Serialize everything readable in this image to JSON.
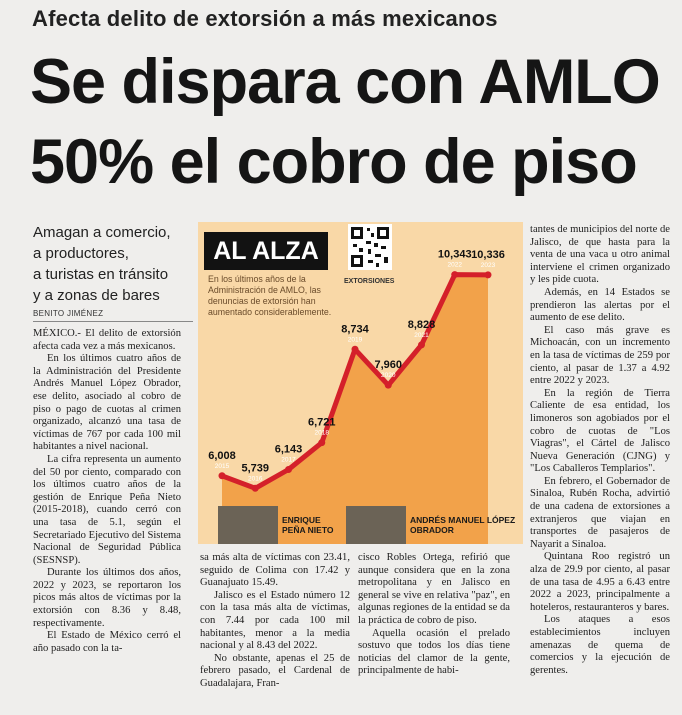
{
  "kicker": "Afecta delito de extorsión a más mexicanos",
  "headline": [
    "Se dispara con AMLO",
    "50% el cobro de piso"
  ],
  "subhead": [
    "Amagan a comercio,",
    "a productores,",
    "a turistas en tránsito",
    "y a zonas de bares"
  ],
  "byline": "BENITO JIMÉNEZ",
  "chart_data": {
    "type": "line",
    "title": "AL ALZA",
    "note": "En los últimos años de la Administración de AMLO, las denuncias de extorsión han aumentado considerablemente.",
    "qr_label": "EXTORSIONES",
    "x": [
      "2015",
      "2016",
      "2017",
      "2018",
      "2019",
      "2020",
      "2021",
      "2022",
      "2023"
    ],
    "values": [
      6008,
      5739,
      6143,
      6721,
      8734,
      7960,
      8828,
      10343,
      10336
    ],
    "value_labels": [
      "6,008",
      "5,739",
      "6,143",
      "6,721",
      "8,734",
      "7,960",
      "8,828",
      "10,343",
      "10,336"
    ],
    "ylim": [
      5400,
      10700
    ],
    "line_color": "#d4202a",
    "fill_color": "#f2a24a",
    "captions": [
      "ENRIQUE PEÑA NIETO",
      "ANDRÉS MANUEL LÓPEZ OBRADOR"
    ]
  },
  "col1": [
    "MÉXICO.- El delito de extorsión afecta cada vez a más mexicanos.",
    "En los últimos cuatro años de la Administración del Presidente Andrés Manuel López Obrador, ese delito, asociado al cobro de piso o pago de cuotas al crimen organizado, alcanzó una tasa de víctimas de 767 por cada 100 mil habitantes a nivel nacional.",
    "La cifra representa un aumento del 50 por ciento, comparado con los últimos cuatro años de la gestión de Enrique Peña Nieto (2015-2018), cuando cerró con una tasa de 5.1, según el Secretariado Ejecutivo del Sistema Nacional de Seguridad Pública (SESNSP).",
    "Durante los últimos dos años, 2022 y 2023, se reportaron los picos más altos de víctimas por la extorsión con 8.36 y 8.48, respectivamente.",
    "El Estado de México cerró el año pasado con la ta-"
  ],
  "col2": [
    "sa más alta de víctimas con 23.41, seguido de Colima con 17.42 y Guanajuato 15.49.",
    "Jalisco es el Estado número 12 con la tasa más alta de víctimas, con 7.44 por cada 100 mil habitantes, menor a la media nacional y al 8.43 del 2022.",
    "No obstante, apenas el 25 de febrero pasado, el Cardenal de Guadalajara, Fran-"
  ],
  "col3": [
    "cisco Robles Ortega, refirió que aunque considera que en la zona metropolitana y en Jalisco en general se vive en relativa \"paz\", en algunas regiones de la entidad se da la práctica de cobro de piso.",
    "Aquella ocasión el prelado sostuvo que todos los días tiene noticias del clamor de la gente, principalmente de habi-"
  ],
  "col4": [
    "tantes de municipios del norte de Jalisco, de que hasta para la venta de una vaca u otro animal interviene el crimen organizado y les pide cuota.",
    "Además, en 14 Estados se prendieron las alertas por el aumento de ese delito.",
    "El caso más grave es Michoacán, con un incremento en la tasa de víctimas de 259 por ciento, al pasar de 1.37 a 4.92 entre 2022 y 2023.",
    "En la región de Tierra Caliente de esa entidad, los limoneros son agobiados por el cobro de cuotas de \"Los Viagras\", el Cártel de Jalisco Nueva Generación (CJNG) y \"Los Caballeros Templarios\".",
    "En febrero, el Gobernador de Sinaloa, Rubén Rocha, advirtió de una cadena de extorsiones a extranjeros que viajan en transportes de pasajeros de Nayarit a Sinaloa.",
    "Quintana Roo registró un alza de 29.9 por ciento, al pasar de una tasa de 4.95 a 6.43 entre 2022 a 2023, principalmente a hoteleros, restauranteros y bares.",
    "Los ataques a esos establecimientos incluyen amenazas de quema de comercios y la ejecución de gerentes."
  ]
}
